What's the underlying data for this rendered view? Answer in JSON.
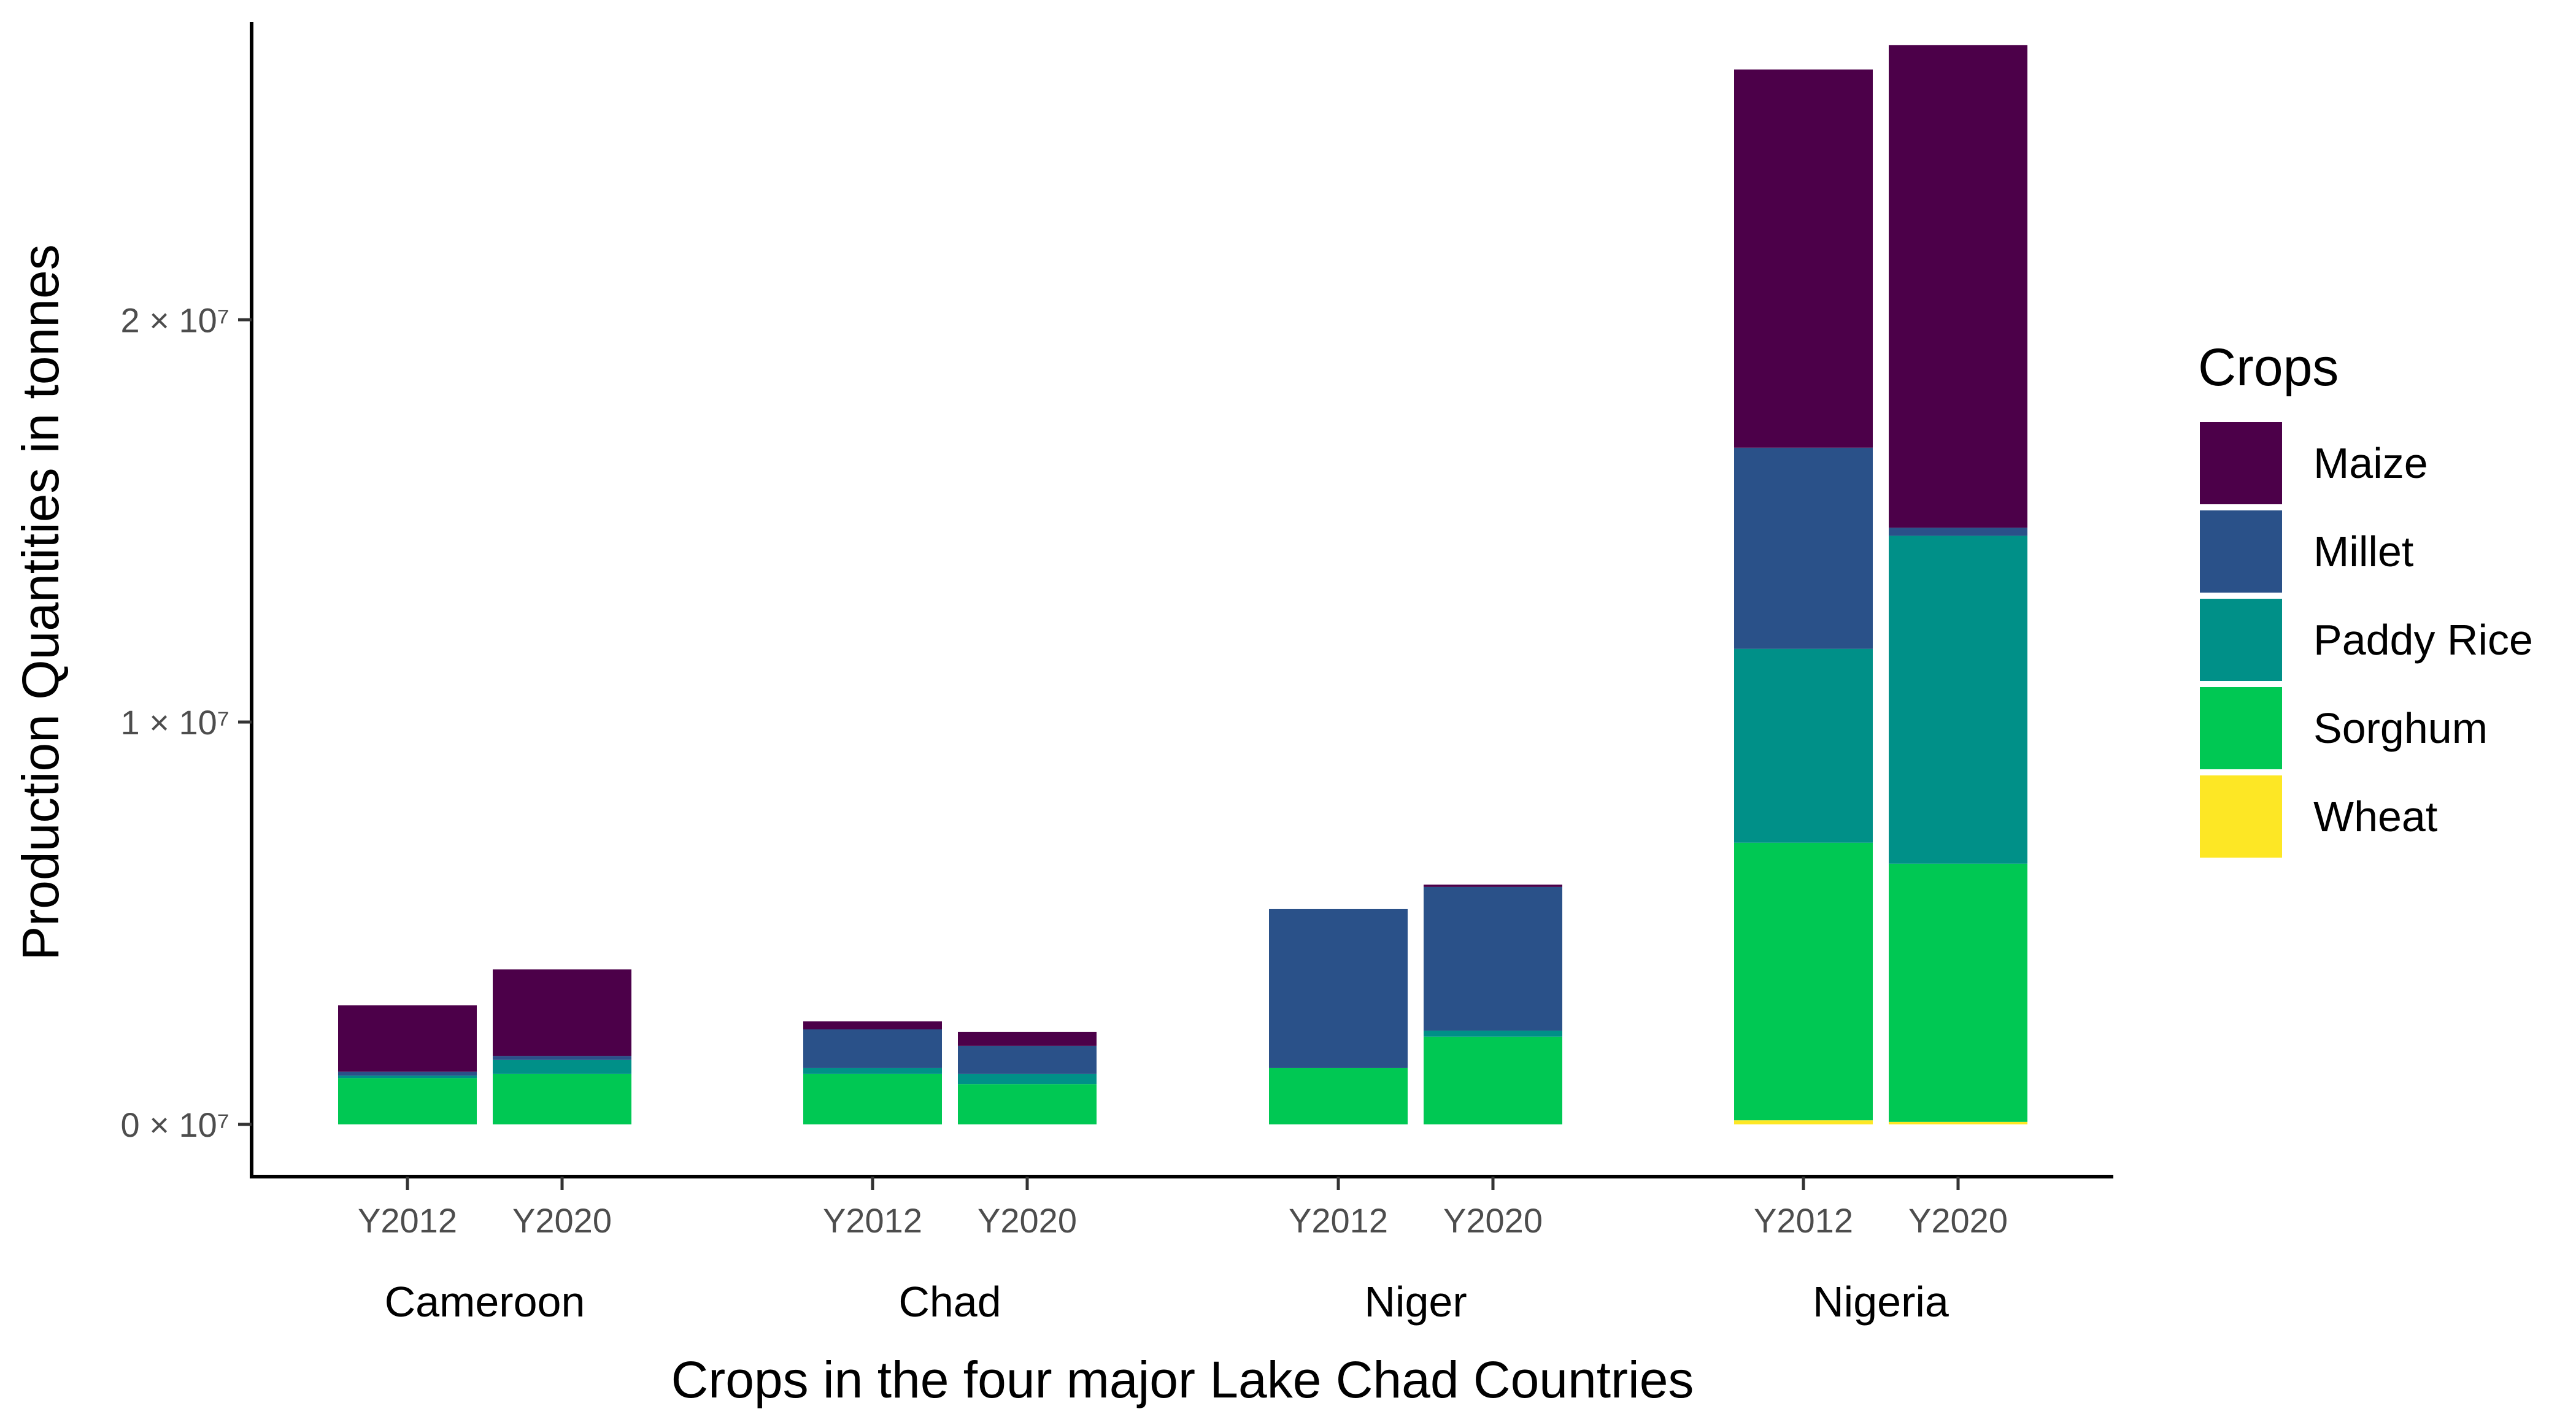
{
  "chart_data": {
    "type": "bar",
    "stacked": true,
    "xlabel": "Crops in the four major Lake Chad Countries",
    "ylabel": "Production Quantities in tonnes",
    "ylim": [
      -1300000,
      27400000
    ],
    "y_ticks": [
      {
        "value": 0,
        "label": "0 × 10⁷"
      },
      {
        "value": 10000000,
        "label": "1 × 10⁷"
      },
      {
        "value": 20000000,
        "label": "2 × 10⁷"
      }
    ],
    "groups": [
      {
        "name": "Cameroon",
        "bars": [
          "Y2012",
          "Y2020"
        ]
      },
      {
        "name": "Chad",
        "bars": [
          "Y2012",
          "Y2020"
        ]
      },
      {
        "name": "Niger",
        "bars": [
          "Y2012",
          "Y2020"
        ]
      },
      {
        "name": "Nigeria",
        "bars": [
          "Y2012",
          "Y2020"
        ]
      }
    ],
    "categories": [
      "Cameroon Y2012",
      "Cameroon Y2020",
      "Chad Y2012",
      "Chad Y2020",
      "Niger Y2012",
      "Niger Y2020",
      "Nigeria Y2012",
      "Nigeria Y2020"
    ],
    "series": [
      {
        "name": "Wheat",
        "color": "#FDE725",
        "values": [
          0,
          0,
          0,
          0,
          0,
          0,
          100000,
          60000
        ]
      },
      {
        "name": "Sorghum",
        "color": "#00C853",
        "values": [
          1150000,
          1250000,
          1250000,
          1000000,
          1400000,
          2180000,
          6900000,
          6420000
        ]
      },
      {
        "name": "Paddy Rice",
        "color": "#009088",
        "values": [
          60000,
          350000,
          150000,
          250000,
          0,
          150000,
          4820000,
          8150000
        ]
      },
      {
        "name": "Millet",
        "color": "#2A5189",
        "values": [
          100000,
          100000,
          960000,
          700000,
          3950000,
          3570000,
          5000000,
          200000
        ]
      },
      {
        "name": "Maize",
        "color": "#4C0049",
        "values": [
          1650000,
          2150000,
          200000,
          350000,
          0,
          60000,
          9400000,
          12000000
        ]
      }
    ],
    "legend": {
      "title": "Crops",
      "position": "right",
      "items": [
        "Maize",
        "Millet",
        "Paddy Rice",
        "Sorghum",
        "Wheat"
      ]
    }
  }
}
